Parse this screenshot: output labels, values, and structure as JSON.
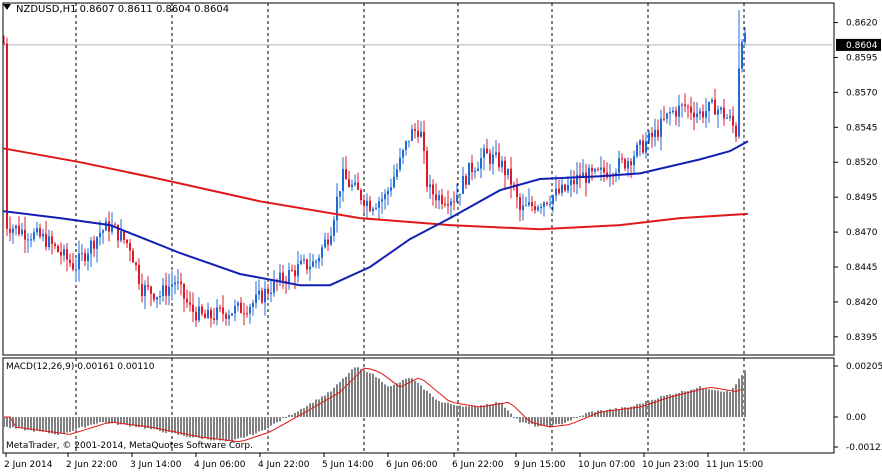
{
  "window": {
    "symbol_line": "NZDUSD,H1  0.8607 0.8611 0.8604 0.8604"
  },
  "indicator": {
    "label": "MACD(12,26,9) 0.00161 0.00110"
  },
  "copyright": "MetaTrader, © 2001-2014, MetaQuotes Software Corp.",
  "colors": {
    "bull": "#1f6bd6",
    "bear": "#e0182a",
    "ma_slow": "#e01818",
    "ma_fast": "#1420b4",
    "macd_hist": "#808080",
    "macd_signal": "#e01818",
    "grid": "#000000"
  },
  "price_axis": {
    "ticks": [
      "0.8620",
      "0.8595",
      "0.8570",
      "0.8545",
      "0.8520",
      "0.8495",
      "0.8470",
      "0.8445",
      "0.8420",
      "0.8395"
    ],
    "current": "0.8604",
    "min": 0.8382,
    "max": 0.8634
  },
  "macd_axis": {
    "ticks": [
      "0.00205",
      "0.00",
      "-0.00123"
    ]
  },
  "time_axis": {
    "labels": [
      "2 Jun 2014",
      "2 Jun 22:00",
      "3 Jun 14:00",
      "4 Jun 06:00",
      "4 Jun 22:00",
      "5 Jun 14:00",
      "6 Jun 06:00",
      "6 Jun 22:00",
      "9 Jun 15:00",
      "10 Jun 07:00",
      "10 Jun 23:00",
      "11 Jun 15:00"
    ]
  }
}
